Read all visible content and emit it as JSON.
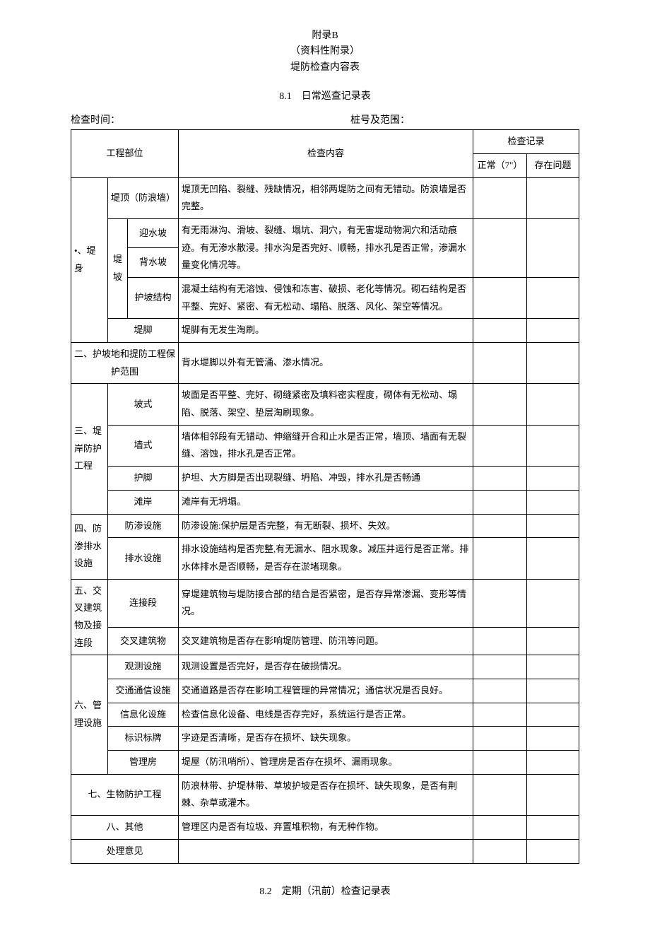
{
  "header": {
    "appendix": "附录B",
    "appendix_note": "（资料性附录）",
    "table_name": "堤防检查内容表"
  },
  "section81": {
    "num_label": "8.1　日常巡查记录表",
    "check_time_label": "检查时间：",
    "pile_range_label": "桩号及范围：",
    "th_part": "工程部位",
    "th_content": "检查内容",
    "th_record": "检查记录",
    "th_normal": "正常（7\"）",
    "th_problem": "存在问题",
    "rows": {
      "r1": {
        "a": "•、堤身",
        "b": "堤顶（防浪墙）",
        "c": "堤顶无凹陷、裂缝、残缺情况，相邻两堤防之间有无错动。防浪墙是否完整。"
      },
      "r2": {
        "a": "堤坡",
        "b": "迎水坡",
        "c": "有无雨淋沟、滑坡、裂缝、塌坑、洞穴，有无害堤动物洞穴和活动痕迹。有无渗水散浸。排水沟是否完好、顺畅，排水孔是否正常，渗漏水量变化情况等。"
      },
      "r3": {
        "b": "背水坡"
      },
      "r4": {
        "b": "护坡结构",
        "c": "混凝土结构有无溶蚀、侵蚀和冻害、破损、老化等情况。砌石结构是否平整、完好、紧密、有无松动、塌陷、脱落、风化、架空等情况。"
      },
      "r5": {
        "b": "堤脚",
        "c": "堤脚有无发生淘刷。"
      },
      "r6": {
        "a": "二、护坡地和提防工程保护范围",
        "c": "背水堤脚以外有无管涌、渗水情况。"
      },
      "r7": {
        "a": "三、堤岸防护工程",
        "b": "坡式",
        "c": "坡面是否平整、完好、砌缝紧密及填料密实程度，砌体有无松动、塌陷、脱落、架空、垫层淘刷现象。"
      },
      "r8": {
        "b": "墙式",
        "c": "墙体相邻段有无错动、伸缩缝开合和止水是否正常，墙顶、墙面有无裂缝、溶蚀，排水孔是否正常。"
      },
      "r9": {
        "b": "护脚",
        "c": "护坦、大方脚是否出现裂缝、坍陷、冲毁，排水孔是否畅通"
      },
      "r10": {
        "b": "滩岸",
        "c": "滩岸有无坍塌。"
      },
      "r11": {
        "a": "四、防渗排水设施",
        "b": "防渗设施",
        "c": "防渗设施:保护层是否完整，有无断裂、损坏、失效。"
      },
      "r12": {
        "b": "排水设施",
        "c": "排水设施结构是否完整,有无漏水、阻水现象。减压井运行是否正常。排水体排水是否顺畅，是否存在淤堵现象。"
      },
      "r13": {
        "a": "五、交叉建筑物及接连段",
        "b": "连接段",
        "c": "穿堤建筑物与堤防接合部的结合是否紧密，是否存异常渗漏、变形等情况。"
      },
      "r14": {
        "b": "交叉建筑物",
        "c": "交叉建筑物是否存在影响堤防管理、防汛等问题。"
      },
      "r15": {
        "a": "六、管理设施",
        "b": "观测设施",
        "c": "观测设置是否完好，是否存在破损情况。"
      },
      "r16": {
        "b": "交通通信设施",
        "c": "交通道路是否存在影响工程管理的异常情况；通信状况是否良好。"
      },
      "r17": {
        "b": "信息化设施",
        "c": "检查信息化设备、电线是否存完好，系统运行是否正常。"
      },
      "r18": {
        "b": "标识标牌",
        "c": "字迹是否清晰，是否存在损坏、缺失现象。"
      },
      "r19": {
        "b": "管理房",
        "c": "堤屋（防汛哨所）、管理房是否存在损坏、漏雨现象。"
      },
      "r20": {
        "a": "七、生物防护工程",
        "c": "防浪林带、护堤林带、草坡护坡是否存在损坏、缺失现象，是否有荆棘、杂草或灌木。"
      },
      "r21": {
        "a": "八、其他",
        "c": "管理区内是否有垃圾、弃置堆积物，有无种作物。"
      },
      "r22": {
        "a": "处理意见"
      }
    }
  },
  "section82": {
    "num_label": "8.2　定期（汛前）检查记录表"
  }
}
